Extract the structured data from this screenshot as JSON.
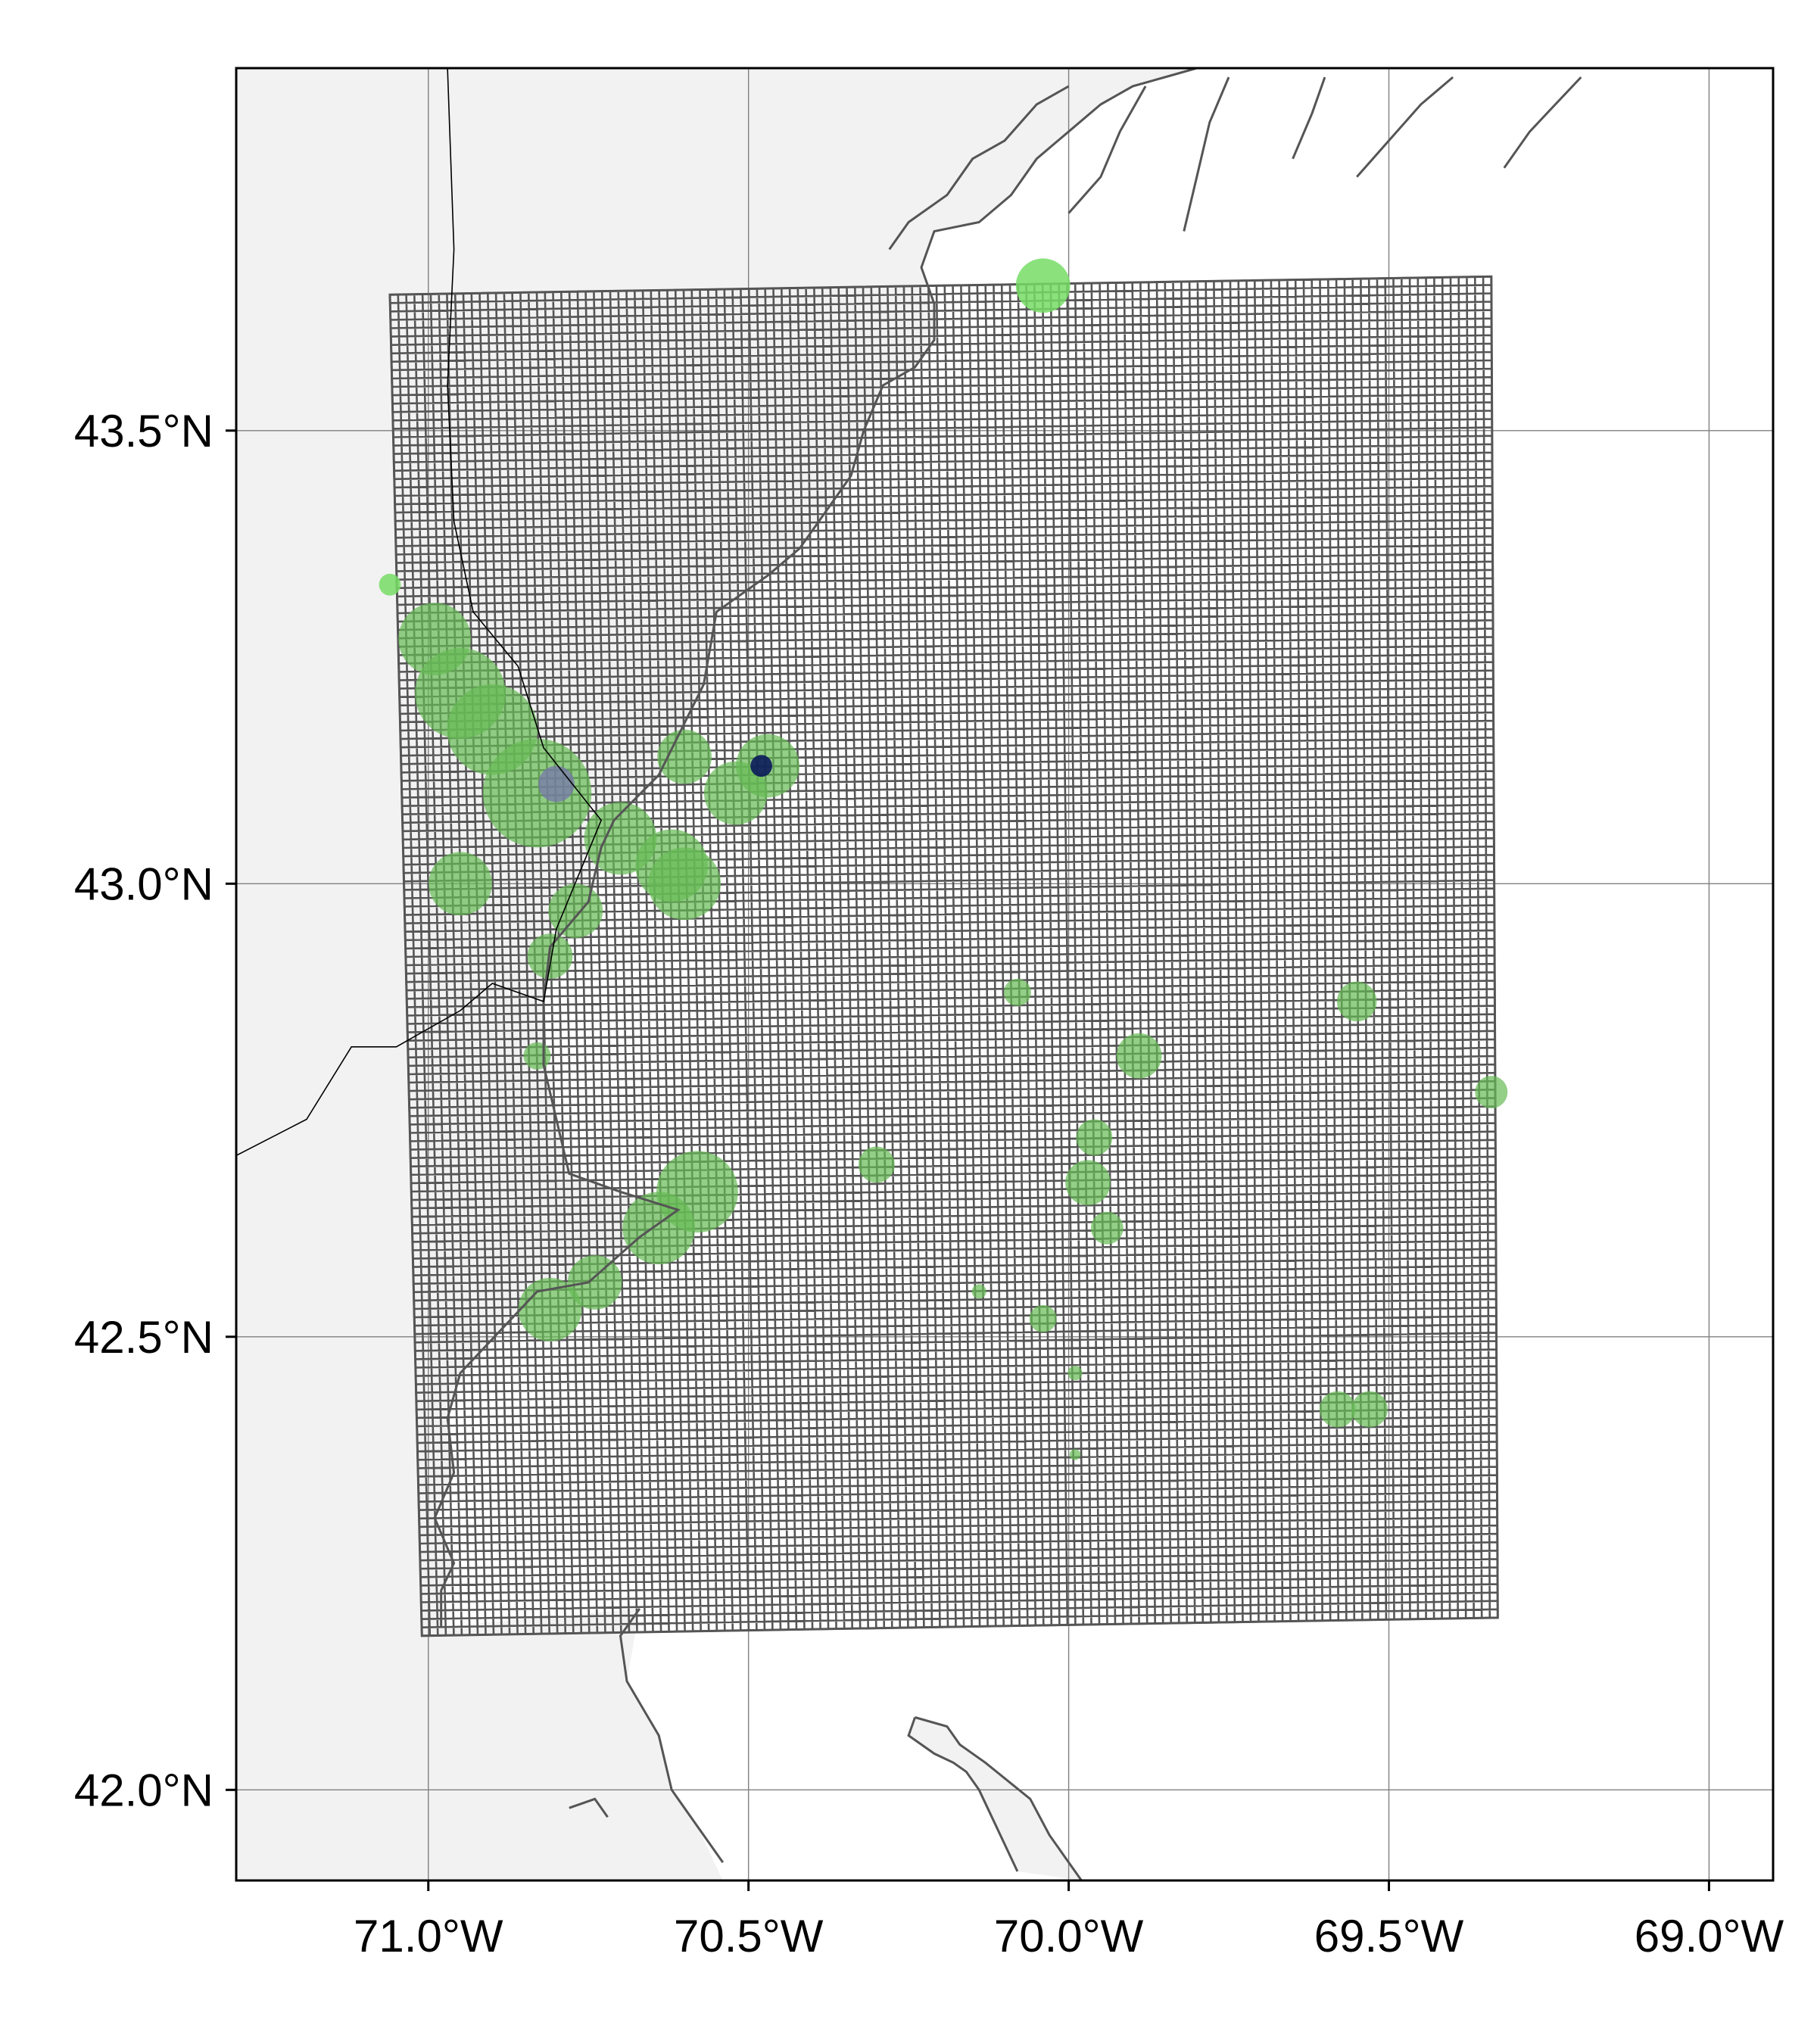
{
  "map": {
    "type": "map",
    "projection": "lat-lon",
    "lon_range": [
      -71.3,
      -68.9
    ],
    "lat_range": [
      41.9,
      43.9
    ],
    "gridlines": true,
    "colors": {
      "land": "#f2f2f2",
      "ocean": "#ffffff",
      "coastline": "#555555",
      "state_border": "#000000",
      "grid_mesh": "#555555",
      "gridline": "#808080",
      "cluster_light_green": "#77dd66",
      "cluster_green": "#66bb55",
      "cluster_purple": "#7777aa",
      "cluster_navy": "#0a1a5a"
    },
    "x_ticks": [
      {
        "value": -71.0,
        "label": "71.0°W"
      },
      {
        "value": -70.5,
        "label": "70.5°W"
      },
      {
        "value": -70.0,
        "label": "70.0°W"
      },
      {
        "value": -69.5,
        "label": "69.5°W"
      },
      {
        "value": -69.0,
        "label": "69.0°W"
      }
    ],
    "y_ticks": [
      {
        "value": 43.5,
        "label": "43.5°N"
      },
      {
        "value": 43.0,
        "label": "43.0°N"
      },
      {
        "value": 42.5,
        "label": "42.5°N"
      },
      {
        "value": 42.0,
        "label": "42.0°N"
      }
    ],
    "model_grid": {
      "corners": [
        [
          -71.06,
          43.65
        ],
        [
          -69.34,
          43.67
        ],
        [
          -69.33,
          42.19
        ],
        [
          -71.01,
          42.17
        ]
      ],
      "cells_x": 135,
      "cells_y": 160
    },
    "clusters": [
      {
        "lon": -70.04,
        "lat": 43.66,
        "r_deg": 0.03,
        "color": "cluster_light_green"
      },
      {
        "lon": -71.06,
        "lat": 43.33,
        "r_deg": 0.012,
        "color": "cluster_light_green"
      },
      {
        "lon": -70.99,
        "lat": 43.27,
        "r_deg": 0.04,
        "color": "cluster_green"
      },
      {
        "lon": -70.95,
        "lat": 43.21,
        "r_deg": 0.05,
        "color": "cluster_green"
      },
      {
        "lon": -70.9,
        "lat": 43.17,
        "r_deg": 0.05,
        "color": "cluster_green"
      },
      {
        "lon": -70.83,
        "lat": 43.1,
        "r_deg": 0.06,
        "color": "cluster_green"
      },
      {
        "lon": -70.95,
        "lat": 43.0,
        "r_deg": 0.035,
        "color": "cluster_green"
      },
      {
        "lon": -70.7,
        "lat": 43.05,
        "r_deg": 0.04,
        "color": "cluster_green"
      },
      {
        "lon": -70.62,
        "lat": 43.02,
        "r_deg": 0.04,
        "color": "cluster_green"
      },
      {
        "lon": -70.6,
        "lat": 43.0,
        "r_deg": 0.04,
        "color": "cluster_green"
      },
      {
        "lon": -70.6,
        "lat": 43.14,
        "r_deg": 0.03,
        "color": "cluster_green"
      },
      {
        "lon": -70.52,
        "lat": 43.1,
        "r_deg": 0.035,
        "color": "cluster_green"
      },
      {
        "lon": -70.47,
        "lat": 43.13,
        "r_deg": 0.035,
        "color": "cluster_green"
      },
      {
        "lon": -70.77,
        "lat": 42.97,
        "r_deg": 0.03,
        "color": "cluster_green"
      },
      {
        "lon": -70.81,
        "lat": 42.92,
        "r_deg": 0.025,
        "color": "cluster_green"
      },
      {
        "lon": -70.83,
        "lat": 42.81,
        "r_deg": 0.015,
        "color": "cluster_green"
      },
      {
        "lon": -70.58,
        "lat": 42.66,
        "r_deg": 0.045,
        "color": "cluster_green"
      },
      {
        "lon": -70.64,
        "lat": 42.62,
        "r_deg": 0.04,
        "color": "cluster_green"
      },
      {
        "lon": -70.74,
        "lat": 42.56,
        "r_deg": 0.03,
        "color": "cluster_green"
      },
      {
        "lon": -70.81,
        "lat": 42.53,
        "r_deg": 0.035,
        "color": "cluster_green"
      },
      {
        "lon": -70.3,
        "lat": 42.69,
        "r_deg": 0.02,
        "color": "cluster_green"
      },
      {
        "lon": -70.08,
        "lat": 42.88,
        "r_deg": 0.015,
        "color": "cluster_green"
      },
      {
        "lon": -69.89,
        "lat": 42.81,
        "r_deg": 0.025,
        "color": "cluster_green"
      },
      {
        "lon": -69.55,
        "lat": 42.87,
        "r_deg": 0.022,
        "color": "cluster_green"
      },
      {
        "lon": -69.34,
        "lat": 42.77,
        "r_deg": 0.018,
        "color": "cluster_green"
      },
      {
        "lon": -69.96,
        "lat": 42.72,
        "r_deg": 0.02,
        "color": "cluster_green"
      },
      {
        "lon": -69.97,
        "lat": 42.67,
        "r_deg": 0.025,
        "color": "cluster_green"
      },
      {
        "lon": -69.94,
        "lat": 42.62,
        "r_deg": 0.018,
        "color": "cluster_green"
      },
      {
        "lon": -70.14,
        "lat": 42.55,
        "r_deg": 0.008,
        "color": "cluster_green"
      },
      {
        "lon": -70.04,
        "lat": 42.52,
        "r_deg": 0.015,
        "color": "cluster_green"
      },
      {
        "lon": -69.99,
        "lat": 42.46,
        "r_deg": 0.008,
        "color": "cluster_green"
      },
      {
        "lon": -69.99,
        "lat": 42.37,
        "r_deg": 0.006,
        "color": "cluster_green"
      },
      {
        "lon": -69.58,
        "lat": 42.42,
        "r_deg": 0.02,
        "color": "cluster_green"
      },
      {
        "lon": -69.53,
        "lat": 42.42,
        "r_deg": 0.02,
        "color": "cluster_green"
      },
      {
        "lon": -70.8,
        "lat": 43.11,
        "r_deg": 0.02,
        "color": "cluster_purple"
      },
      {
        "lon": -70.48,
        "lat": 43.13,
        "r_deg": 0.012,
        "color": "cluster_navy"
      }
    ],
    "coastlines": [
      [
        [
          -70.67,
          42.2
        ],
        [
          -70.7,
          42.17
        ],
        [
          -70.69,
          42.12
        ],
        [
          -70.64,
          42.06
        ],
        [
          -70.62,
          42.0
        ],
        [
          -70.58,
          41.96
        ],
        [
          -70.54,
          41.92
        ]
      ],
      [
        [
          -70.78,
          41.98
        ],
        [
          -70.74,
          41.99
        ],
        [
          -70.72,
          41.97
        ]
      ],
      [
        [
          -70.24,
          42.08
        ],
        [
          -70.19,
          42.07
        ],
        [
          -70.17,
          42.05
        ],
        [
          -70.13,
          42.03
        ],
        [
          -70.06,
          41.99
        ],
        [
          -70.03,
          41.95
        ],
        [
          -70.0,
          41.92
        ],
        [
          -69.98,
          41.9
        ]
      ],
      [
        [
          -70.24,
          42.08
        ],
        [
          -70.25,
          42.06
        ],
        [
          -70.21,
          42.04
        ],
        [
          -70.18,
          42.03
        ],
        [
          -70.16,
          42.02
        ],
        [
          -70.14,
          42.0
        ],
        [
          -70.12,
          41.97
        ],
        [
          -70.1,
          41.94
        ],
        [
          -70.08,
          41.91
        ]
      ],
      [
        [
          -70.98,
          42.18
        ],
        [
          -70.98,
          42.22
        ],
        [
          -70.96,
          42.25
        ],
        [
          -70.99,
          42.3
        ],
        [
          -70.96,
          42.35
        ],
        [
          -70.97,
          42.41
        ],
        [
          -70.95,
          42.46
        ],
        [
          -70.87,
          42.52
        ],
        [
          -70.83,
          42.55
        ],
        [
          -70.75,
          42.56
        ],
        [
          -70.67,
          42.61
        ],
        [
          -70.61,
          42.64
        ],
        [
          -70.7,
          42.66
        ],
        [
          -70.78,
          42.68
        ],
        [
          -70.8,
          42.74
        ],
        [
          -70.82,
          42.8
        ],
        [
          -70.82,
          42.87
        ],
        [
          -70.81,
          42.93
        ],
        [
          -70.75,
          42.98
        ],
        [
          -70.73,
          43.04
        ],
        [
          -70.71,
          43.07
        ],
        [
          -70.64,
          43.12
        ],
        [
          -70.57,
          43.22
        ],
        [
          -70.55,
          43.3
        ],
        [
          -70.47,
          43.34
        ],
        [
          -70.42,
          43.37
        ],
        [
          -70.38,
          43.41
        ],
        [
          -70.34,
          43.45
        ],
        [
          -70.32,
          43.5
        ],
        [
          -70.29,
          43.55
        ],
        [
          -70.24,
          43.57
        ],
        [
          -70.21,
          43.6
        ],
        [
          -70.21,
          43.64
        ],
        [
          -70.23,
          43.68
        ],
        [
          -70.21,
          43.72
        ],
        [
          -70.14,
          43.73
        ],
        [
          -70.09,
          43.76
        ],
        [
          -70.05,
          43.8
        ],
        [
          -70.0,
          43.83
        ],
        [
          -69.95,
          43.86
        ],
        [
          -69.9,
          43.88
        ],
        [
          -69.85,
          43.89
        ],
        [
          -69.8,
          43.9
        ]
      ],
      [
        [
          -70.28,
          43.7
        ],
        [
          -70.25,
          43.73
        ],
        [
          -70.19,
          43.76
        ],
        [
          -70.15,
          43.8
        ],
        [
          -70.1,
          43.82
        ],
        [
          -70.05,
          43.86
        ],
        [
          -70.0,
          43.88
        ]
      ],
      [
        [
          -70.0,
          43.74
        ],
        [
          -69.95,
          43.78
        ],
        [
          -69.92,
          43.83
        ],
        [
          -69.88,
          43.88
        ]
      ],
      [
        [
          -69.82,
          43.72
        ],
        [
          -69.8,
          43.78
        ],
        [
          -69.78,
          43.84
        ],
        [
          -69.75,
          43.89
        ]
      ],
      [
        [
          -69.65,
          43.8
        ],
        [
          -69.62,
          43.85
        ],
        [
          -69.6,
          43.89
        ]
      ],
      [
        [
          -69.55,
          43.78
        ],
        [
          -69.5,
          43.82
        ],
        [
          -69.45,
          43.86
        ],
        [
          -69.4,
          43.89
        ]
      ],
      [
        [
          -69.32,
          43.79
        ],
        [
          -69.28,
          43.83
        ],
        [
          -69.24,
          43.86
        ],
        [
          -69.2,
          43.89
        ]
      ]
    ],
    "state_border": [
      [
        -70.97,
        43.9
      ],
      [
        -70.96,
        43.7
      ],
      [
        -70.97,
        43.55
      ],
      [
        -70.96,
        43.4
      ],
      [
        -70.93,
        43.3
      ],
      [
        -70.86,
        43.24
      ],
      [
        -70.82,
        43.15
      ],
      [
        -70.73,
        43.07
      ],
      [
        -70.8,
        42.95
      ],
      [
        -70.82,
        42.87
      ],
      [
        -70.9,
        42.89
      ],
      [
        -70.95,
        42.86
      ],
      [
        -71.05,
        42.82
      ],
      [
        -71.12,
        42.82
      ],
      [
        -71.19,
        42.74
      ],
      [
        -71.3,
        42.7
      ]
    ]
  }
}
